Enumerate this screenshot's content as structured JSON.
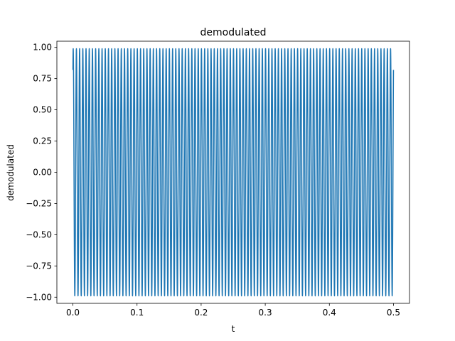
{
  "chart_data": {
    "type": "line",
    "title": "demodulated",
    "xlabel": "t",
    "ylabel": "demodulated",
    "xlim": [
      -0.025,
      0.525
    ],
    "ylim": [
      -1.0495,
      1.0495
    ],
    "x_ticks": [
      0.0,
      0.1,
      0.2,
      0.3,
      0.4,
      0.5
    ],
    "x_tick_labels": [
      "0.0",
      "0.1",
      "0.2",
      "0.3",
      "0.4",
      "0.5"
    ],
    "y_ticks": [
      -1.0,
      -0.75,
      -0.5,
      -0.25,
      0.0,
      0.25,
      0.5,
      0.75,
      1.0
    ],
    "y_tick_labels": [
      "−1.00",
      "−0.75",
      "−0.50",
      "−0.25",
      "0.00",
      "0.25",
      "0.50",
      "0.75",
      "1.00"
    ],
    "grid": false,
    "legend": "none",
    "series": [
      {
        "color": "#1f77b4",
        "signal": "sinusoid",
        "t_start": 0.0,
        "t_end": 0.5,
        "frequency": 200,
        "amplitude": 0.99,
        "initial_value": 0.82
      }
    ]
  }
}
